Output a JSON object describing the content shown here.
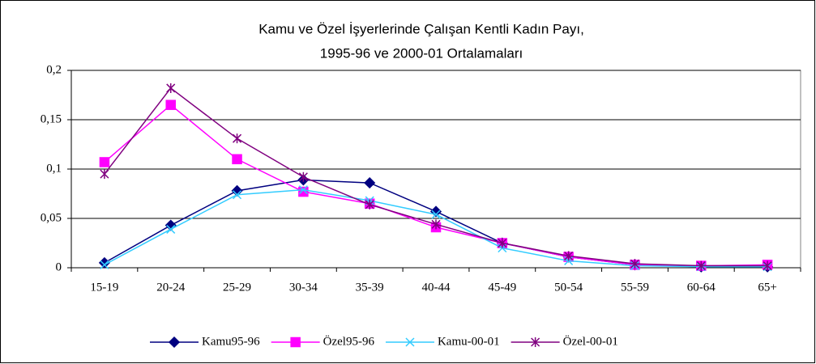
{
  "chart_data": {
    "type": "line",
    "title": [
      "Kamu ve Özel İşyerlerinde Çalışan Kentli Kadın Payı,",
      "1995-96 ve  2000-01 Ortalamaları"
    ],
    "categories": [
      "15-19",
      "20-24",
      "25-29",
      "30-34",
      "35-39",
      "40-44",
      "45-49",
      "50-54",
      "55-59",
      "60-64",
      "65+"
    ],
    "series": [
      {
        "name": "Kamu95-96",
        "color": "#000080",
        "marker": "diamond",
        "values": [
          0.005,
          0.043,
          0.078,
          0.089,
          0.086,
          0.057,
          0.025,
          0.011,
          0.003,
          0.001,
          0.001
        ]
      },
      {
        "name": "Özel95-96",
        "color": "#ff00ff",
        "marker": "square",
        "values": [
          0.107,
          0.165,
          0.11,
          0.077,
          0.065,
          0.041,
          0.025,
          0.011,
          0.003,
          0.002,
          0.003
        ]
      },
      {
        "name": "Kamu-00-01",
        "color": "#33ccff",
        "marker": "x",
        "values": [
          0.003,
          0.039,
          0.074,
          0.079,
          0.068,
          0.054,
          0.02,
          0.007,
          0.002,
          0.001,
          0.001
        ]
      },
      {
        "name": "Özel-00-01",
        "color": "#800080",
        "marker": "star",
        "values": [
          0.095,
          0.182,
          0.131,
          0.092,
          0.064,
          0.044,
          0.025,
          0.012,
          0.004,
          0.002,
          0.002
        ]
      }
    ],
    "ylim": [
      0,
      0.2
    ],
    "yticks": [
      0,
      {
        "value": 0.05,
        "label": "0,05"
      },
      {
        "value": 0.1,
        "label": "0,1"
      },
      {
        "value": 0.15,
        "label": "0,15"
      },
      {
        "value": 0.2,
        "label": "0,2"
      }
    ],
    "grid": true,
    "legend": "bottom"
  }
}
